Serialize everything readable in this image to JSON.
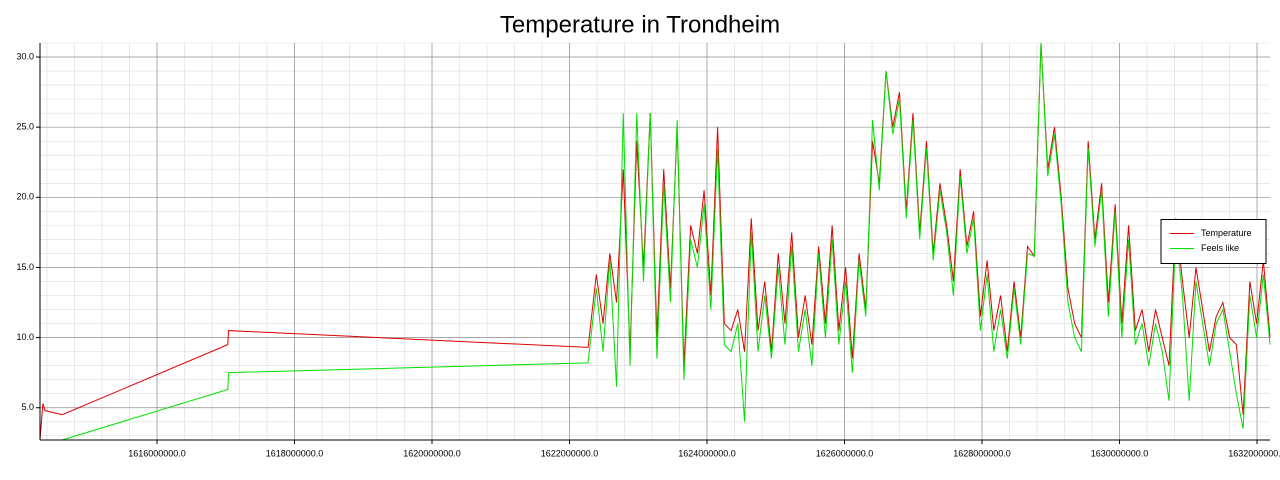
{
  "chart_data": {
    "type": "line",
    "title": "Temperature in Trondheim",
    "x": [
      1614298000,
      1614340000,
      1614370000,
      1614620000,
      1617030000,
      1617040000,
      1622270000,
      1622390000,
      1622488000,
      1622586000,
      1622684000,
      1622782000,
      1622880000,
      1622978000,
      1623076000,
      1623174000,
      1623272000,
      1623370000,
      1623468000,
      1623566000,
      1623664000,
      1623762000,
      1623860000,
      1623958000,
      1624056000,
      1624154000,
      1624252000,
      1624350000,
      1624448000,
      1624546000,
      1624644000,
      1624742000,
      1624840000,
      1624938000,
      1625036000,
      1625134000,
      1625232000,
      1625330000,
      1625428000,
      1625526000,
      1625624000,
      1625722000,
      1625820000,
      1625918000,
      1626016000,
      1626114000,
      1626212000,
      1626310000,
      1626408000,
      1626506000,
      1626604000,
      1626702000,
      1626800000,
      1626898000,
      1626996000,
      1627094000,
      1627192000,
      1627290000,
      1627388000,
      1627486000,
      1627584000,
      1627682000,
      1627780000,
      1627878000,
      1627976000,
      1628074000,
      1628172000,
      1628270000,
      1628368000,
      1628466000,
      1628564000,
      1628662000,
      1628760000,
      1628858000,
      1628956000,
      1629054000,
      1629152000,
      1629250000,
      1629348000,
      1629446000,
      1629544000,
      1629642000,
      1629740000,
      1629838000,
      1629936000,
      1630034000,
      1630132000,
      1630230000,
      1630328000,
      1630426000,
      1630524000,
      1630622000,
      1630720000,
      1630818000,
      1630916000,
      1631014000,
      1631112000,
      1631210000,
      1631308000,
      1631406000,
      1631504000,
      1631602000,
      1631700000,
      1631798000,
      1631896000,
      1631994000,
      1632092000,
      1632190000
    ],
    "series": [
      {
        "name": "Temperature",
        "color": "#e00000",
        "values": [
          2.7,
          5.3,
          4.8,
          4.5,
          9.5,
          10.5,
          9.3,
          14.5,
          11,
          16,
          12.5,
          22,
          9,
          24,
          15,
          26,
          10,
          22,
          13.5,
          25,
          8,
          18,
          16,
          20.5,
          13,
          25,
          11,
          10.5,
          12,
          9,
          18.5,
          10.5,
          14,
          9,
          16,
          11,
          17.5,
          10,
          13,
          9.5,
          16.5,
          11,
          18,
          10.5,
          15,
          8.5,
          16,
          12,
          24,
          21,
          29,
          25,
          27.5,
          19,
          26,
          17.5,
          24,
          16,
          21,
          18,
          14,
          22,
          16.5,
          19,
          11.5,
          15.5,
          10.5,
          13,
          9,
          14,
          10,
          16.5,
          15.8,
          31,
          22,
          25,
          20,
          13.5,
          11,
          10,
          24,
          17,
          21,
          12.5,
          19.5,
          11,
          18,
          10.5,
          12,
          9,
          12,
          10,
          8,
          18.5,
          14,
          10,
          15,
          12,
          9,
          11.5,
          12.5,
          10,
          9.5,
          4.5,
          14,
          11,
          15.5,
          10
        ]
      },
      {
        "name": "Feels like",
        "color": "#00e000",
        "values": [
          2.7,
          2.7,
          2.7,
          2.7,
          6.3,
          7.5,
          8.2,
          13.5,
          9,
          15.5,
          6.5,
          26,
          8,
          26,
          14,
          26,
          8.5,
          21,
          12.5,
          25.5,
          7,
          17,
          15,
          19.5,
          12,
          23.5,
          9.5,
          9,
          11,
          4,
          17.5,
          9,
          13,
          8.5,
          15,
          9.5,
          16.5,
          9,
          12,
          8,
          16,
          10,
          17,
          9.5,
          14,
          7.5,
          15.5,
          11.5,
          25.5,
          20.5,
          29,
          24.5,
          27,
          18.5,
          25.5,
          17,
          23.5,
          15.5,
          20.5,
          17.5,
          13,
          21.5,
          16,
          18.5,
          10.5,
          14.5,
          9,
          12,
          8.5,
          13.5,
          9.5,
          16,
          15.8,
          31,
          21.5,
          24.5,
          19.5,
          12.5,
          10,
          9,
          23.5,
          16.5,
          20.5,
          11.5,
          19,
          10,
          17,
          9.5,
          11,
          8,
          11,
          9,
          5.5,
          17.5,
          13,
          5.5,
          14,
          11,
          8,
          11,
          12,
          9,
          6,
          3.5,
          13,
          10,
          14.5,
          9.5
        ]
      }
    ],
    "xlim": [
      1614298000,
      1632189000
    ],
    "ylim": [
      2.7,
      31.0
    ],
    "xticks": [
      {
        "value": 1616000000,
        "label": "1616000000.0"
      },
      {
        "value": 1618000000,
        "label": "1618000000.0"
      },
      {
        "value": 1620000000,
        "label": "1620000000.0"
      },
      {
        "value": 1622000000,
        "label": "1622000000.0"
      },
      {
        "value": 1624000000,
        "label": "1624000000.0"
      },
      {
        "value": 1626000000,
        "label": "1626000000.0"
      },
      {
        "value": 1628000000,
        "label": "1628000000.0"
      },
      {
        "value": 1630000000,
        "label": "1630000000.0"
      },
      {
        "value": 1632000000,
        "label": "1632000000.0"
      }
    ],
    "yticks": [
      {
        "value": 5,
        "label": "5.0"
      },
      {
        "value": 10,
        "label": "10.0"
      },
      {
        "value": 15,
        "label": "15.0"
      },
      {
        "value": 20,
        "label": "20.0"
      },
      {
        "value": 25,
        "label": "25.0"
      },
      {
        "value": 30,
        "label": "30.0"
      }
    ],
    "grid": true,
    "legend": "center right"
  }
}
